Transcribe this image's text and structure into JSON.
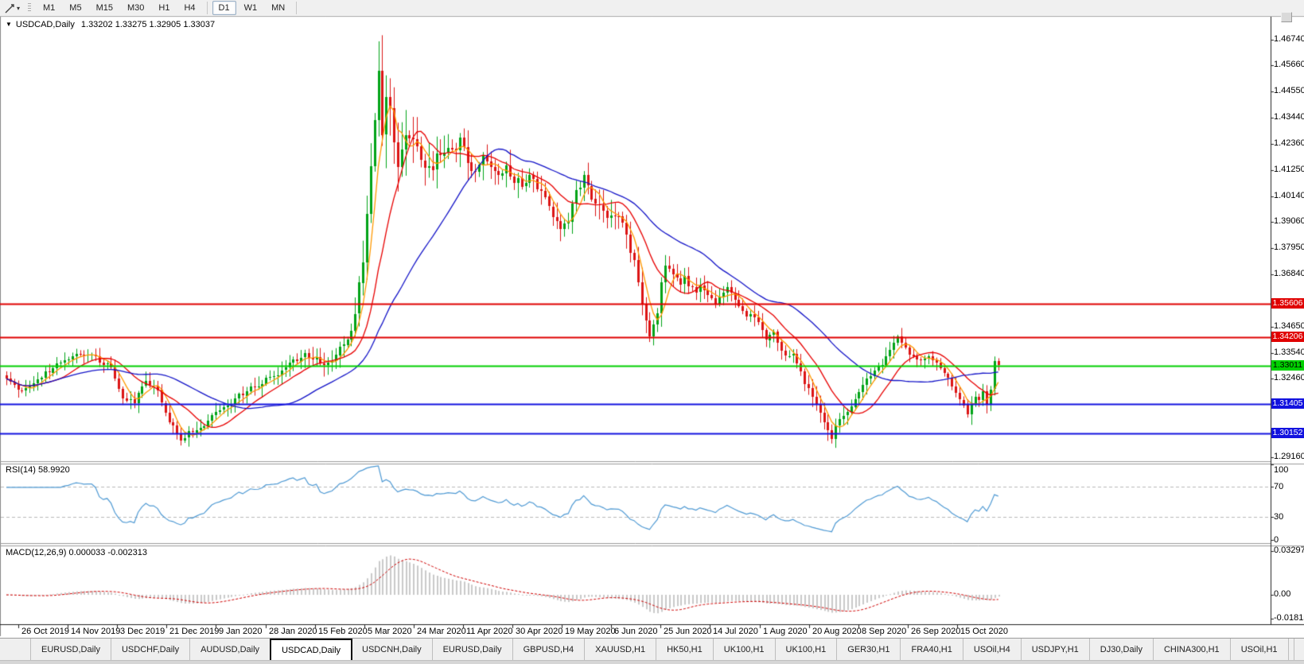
{
  "toolbar": {
    "tool_icon": "trendline-pointer-icon",
    "timeframes": [
      "M1",
      "M5",
      "M15",
      "M30",
      "H1",
      "H4",
      "D1",
      "W1",
      "MN"
    ],
    "active_timeframe": "D1",
    "group_break_after": "H4"
  },
  "chart": {
    "title": "USDCAD,Daily",
    "ohlc_text": "1.33202 1.33275 1.32905 1.33037",
    "open": "1.33202",
    "high": "1.33275",
    "low": "1.32905",
    "close": "1.33037"
  },
  "rsi": {
    "label": "RSI(14) 58.9920",
    "value": "58.9920",
    "period": 14,
    "axis_labels": [
      "100",
      "70",
      "30",
      "0"
    ]
  },
  "macd": {
    "label": "MACD(12,26,9) 0.000033 -0.002313",
    "main": "0.000033",
    "signal": "-0.002313",
    "axis_labels": [
      "0.032972",
      "0.00",
      "-0.018154"
    ]
  },
  "dates": [
    "26 Oct 2019",
    "14 Nov 2019",
    "3 Dec 2019",
    "21 Dec 2019",
    "9 Jan 2020",
    "28 Jan 2020",
    "15 Feb 2020",
    "5 Mar 2020",
    "24 Mar 2020",
    "11 Apr 2020",
    "30 Apr 2020",
    "19 May 2020",
    "6 Jun 2020",
    "25 Jun 2020",
    "14 Jul 2020",
    "1 Aug 2020",
    "20 Aug 2020",
    "8 Sep 2020",
    "26 Sep 2020",
    "15 Oct 2020"
  ],
  "tabs": {
    "items": [
      "EURUSD,Daily",
      "USDCHF,Daily",
      "AUDUSD,Daily",
      "USDCAD,Daily",
      "USDCNH,Daily",
      "EURUSD,Daily",
      "GBPUSD,H4",
      "XAUUSD,H1",
      "HK50,H1",
      "UK100,H1",
      "UK100,H1",
      "GER30,H1",
      "FRA40,H1",
      "USOil,H4",
      "USDJPY,H1",
      "DJ30,Daily",
      "CHINA300,H1",
      "USOil,H1"
    ],
    "active_index": 3,
    "scroll_left_icon": "◂",
    "scroll_right_icon": "▸"
  },
  "chart_data": {
    "type": "candlestick",
    "symbol": "USDCAD",
    "timeframe": "Daily",
    "price_axis": {
      "visible_ticks": [
        "1.46740",
        "1.45660",
        "1.44550",
        "1.43440",
        "1.42360",
        "1.41250",
        "1.40140",
        "1.39060",
        "1.37950",
        "1.36840",
        "1.34650",
        "1.33540",
        "1.32460",
        "1.29160"
      ],
      "top": 1.4767,
      "bottom": 1.2898
    },
    "hlines": [
      {
        "price": "1.35606",
        "value": 1.35606,
        "color": "#E00000",
        "text_color": "#FFFFFF"
      },
      {
        "price": "1.34206",
        "value": 1.34206,
        "color": "#E00000",
        "text_color": "#FFFFFF"
      },
      {
        "price": "1.33011",
        "value": 1.33011,
        "color": "#00D000",
        "text_color": "#000000"
      },
      {
        "price": "1.31405",
        "value": 1.31405,
        "color": "#1212DF",
        "text_color": "#FFFFFF"
      },
      {
        "price": "1.30152",
        "value": 1.30152,
        "color": "#1212DF",
        "text_color": "#FFFFFF"
      }
    ],
    "bars_total": 257,
    "close_anchors": [
      [
        0,
        1.324
      ],
      [
        4,
        1.3193
      ],
      [
        10,
        1.3266
      ],
      [
        15,
        1.3327
      ],
      [
        19,
        1.3357
      ],
      [
        23,
        1.3333
      ],
      [
        27,
        1.3293
      ],
      [
        30,
        1.3173
      ],
      [
        33,
        1.3149
      ],
      [
        36,
        1.324
      ],
      [
        39,
        1.32
      ],
      [
        42,
        1.3065
      ],
      [
        45,
        1.2992
      ],
      [
        47,
        1.3015
      ],
      [
        50,
        1.3032
      ],
      [
        52,
        1.3072
      ],
      [
        55,
        1.3116
      ],
      [
        58,
        1.3149
      ],
      [
        62,
        1.3193
      ],
      [
        66,
        1.3233
      ],
      [
        70,
        1.3266
      ],
      [
        74,
        1.3317
      ],
      [
        77,
        1.334
      ],
      [
        80,
        1.3327
      ],
      [
        83,
        1.33
      ],
      [
        85,
        1.334
      ],
      [
        87,
        1.34
      ],
      [
        89,
        1.3451
      ],
      [
        90,
        1.3534
      ],
      [
        91,
        1.3635
      ],
      [
        92,
        1.3735
      ],
      [
        93,
        1.3936
      ],
      [
        95,
        1.4338
      ],
      [
        96,
        1.4522
      ],
      [
        97,
        1.4238
      ],
      [
        98,
        1.4439
      ],
      [
        99,
        1.4422
      ],
      [
        100,
        1.4271
      ],
      [
        101,
        1.4137
      ],
      [
        103,
        1.4288
      ],
      [
        105,
        1.4254
      ],
      [
        107,
        1.4154
      ],
      [
        109,
        1.4121
      ],
      [
        111,
        1.4171
      ],
      [
        113,
        1.4221
      ],
      [
        115,
        1.4198
      ],
      [
        117,
        1.426
      ],
      [
        119,
        1.4154
      ],
      [
        121,
        1.4121
      ],
      [
        123,
        1.4171
      ],
      [
        125,
        1.4137
      ],
      [
        127,
        1.4121
      ],
      [
        129,
        1.4137
      ],
      [
        131,
        1.4087
      ],
      [
        133,
        1.407
      ],
      [
        135,
        1.4097
      ],
      [
        137,
        1.4054
      ],
      [
        139,
        1.4003
      ],
      [
        141,
        1.3936
      ],
      [
        143,
        1.3869
      ],
      [
        145,
        1.392
      ],
      [
        147,
        1.4037
      ],
      [
        149,
        1.4087
      ],
      [
        151,
        1.401
      ],
      [
        153,
        1.397
      ],
      [
        155,
        1.393
      ],
      [
        157,
        1.3943
      ],
      [
        159,
        1.3886
      ],
      [
        160,
        1.3836
      ],
      [
        162,
        1.3735
      ],
      [
        163,
        1.3635
      ],
      [
        164,
        1.3551
      ],
      [
        165,
        1.3484
      ],
      [
        166,
        1.3434
      ],
      [
        167,
        1.3474
      ],
      [
        168,
        1.3534
      ],
      [
        169,
        1.3668
      ],
      [
        170,
        1.3735
      ],
      [
        172,
        1.3695
      ],
      [
        174,
        1.3651
      ],
      [
        175,
        1.3675
      ],
      [
        176,
        1.3635
      ],
      [
        178,
        1.3608
      ],
      [
        179,
        1.3635
      ],
      [
        181,
        1.3595
      ],
      [
        183,
        1.3568
      ],
      [
        184,
        1.3601
      ],
      [
        186,
        1.3628
      ],
      [
        188,
        1.3575
      ],
      [
        190,
        1.3534
      ],
      [
        191,
        1.3501
      ],
      [
        192,
        1.3517
      ],
      [
        194,
        1.3474
      ],
      [
        195,
        1.3451
      ],
      [
        196,
        1.3417
      ],
      [
        198,
        1.3441
      ],
      [
        199,
        1.34
      ],
      [
        200,
        1.3367
      ],
      [
        202,
        1.3333
      ],
      [
        203,
        1.335
      ],
      [
        204,
        1.3306
      ],
      [
        205,
        1.327
      ],
      [
        206,
        1.3233
      ],
      [
        207,
        1.32
      ],
      [
        208,
        1.3166
      ],
      [
        209,
        1.3133
      ],
      [
        210,
        1.3095
      ],
      [
        211,
        1.306
      ],
      [
        212,
        1.3032
      ],
      [
        213,
        1.2999
      ],
      [
        214,
        1.304
      ],
      [
        216,
        1.309
      ],
      [
        218,
        1.314
      ],
      [
        220,
        1.319
      ],
      [
        222,
        1.324
      ],
      [
        224,
        1.327
      ],
      [
        226,
        1.331
      ],
      [
        228,
        1.336
      ],
      [
        229,
        1.34
      ],
      [
        230,
        1.342
      ],
      [
        231,
        1.3395
      ],
      [
        232,
        1.337
      ],
      [
        234,
        1.334
      ],
      [
        236,
        1.332
      ],
      [
        238,
        1.334
      ],
      [
        240,
        1.331
      ],
      [
        242,
        1.327
      ],
      [
        244,
        1.322
      ],
      [
        246,
        1.316
      ],
      [
        247,
        1.3125
      ],
      [
        248,
        1.3105
      ],
      [
        249,
        1.3145
      ],
      [
        250,
        1.317
      ],
      [
        251,
        1.315
      ],
      [
        252,
        1.3185
      ],
      [
        253,
        1.3145
      ],
      [
        254,
        1.3208
      ],
      [
        255,
        1.332
      ],
      [
        256,
        1.33037
      ]
    ],
    "vol_anchors": [
      [
        0,
        0.0032
      ],
      [
        40,
        0.0042
      ],
      [
        50,
        0.0036
      ],
      [
        88,
        0.0055
      ],
      [
        94,
        0.012
      ],
      [
        96,
        0.017
      ],
      [
        99,
        0.013
      ],
      [
        105,
        0.0105
      ],
      [
        120,
        0.0075
      ],
      [
        140,
        0.006
      ],
      [
        158,
        0.007
      ],
      [
        168,
        0.006
      ],
      [
        180,
        0.0045
      ],
      [
        200,
        0.0038
      ],
      [
        213,
        0.005
      ],
      [
        222,
        0.004
      ],
      [
        240,
        0.0035
      ],
      [
        248,
        0.0045
      ],
      [
        253,
        0.004
      ],
      [
        256,
        0.003
      ]
    ],
    "moving_averages": [
      {
        "name": "fast-ma",
        "period": 5,
        "color": "#FF9900"
      },
      {
        "name": "mid-ma",
        "period": 13,
        "color": "#E80000"
      },
      {
        "name": "slow-ma",
        "period": 34,
        "color": "#1414C8"
      }
    ],
    "rsi": {
      "period": 14,
      "levels": [
        70,
        30
      ],
      "color": "#4F9AD4"
    },
    "macd": {
      "fast": 12,
      "slow": 26,
      "signal": 9,
      "hist_color": "#C9C9C9",
      "signal_color": "#D00000",
      "axis_max": 0.032972,
      "axis_min": -0.018154
    },
    "colors": {
      "up": "#00A316",
      "down": "#DC1414",
      "background": "#FFFFFF",
      "border": "#000000"
    }
  }
}
